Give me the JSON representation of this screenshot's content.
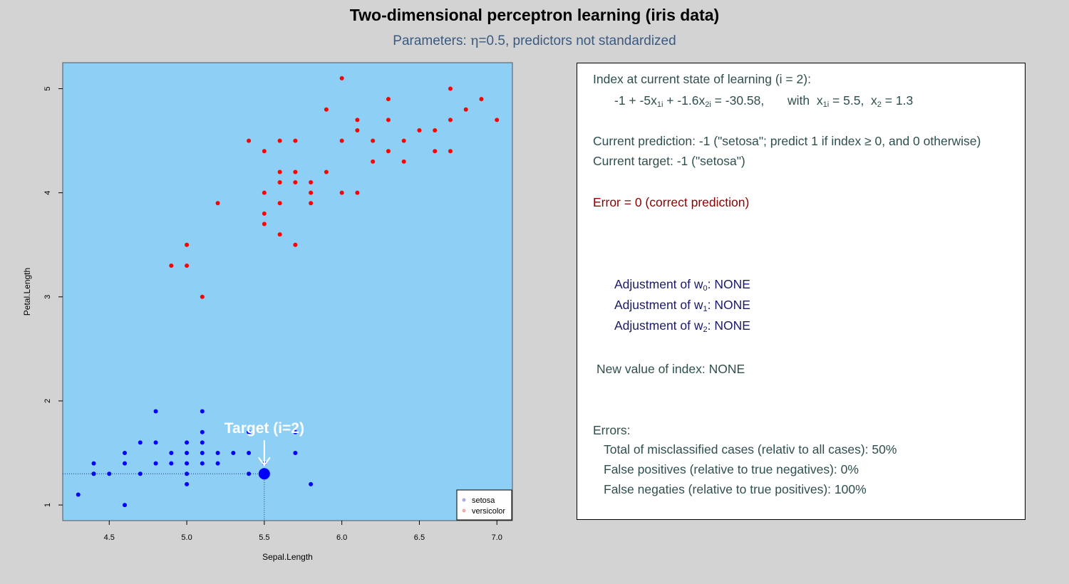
{
  "title": "Two-dimensional perceptron learning (iris data)",
  "subtitle": {
    "prefix": "Parameters: ",
    "eta_symbol": "η",
    "suffix": "=0.5, predictors not standardized"
  },
  "chart_data": {
    "type": "scatter",
    "xlabel": "Sepal.Length",
    "ylabel": "Petal.Length",
    "xlim": [
      4.2,
      7.1
    ],
    "ylim": [
      0.85,
      5.25
    ],
    "xticks": [
      "4.5",
      "5.0",
      "5.5",
      "6.0",
      "6.5",
      "7.0"
    ],
    "yticks": [
      "1",
      "2",
      "3",
      "4",
      "5"
    ],
    "background": "#8ecff5",
    "grid": false,
    "legend_position": "bottom-right",
    "series": [
      {
        "name": "setosa",
        "color": "#0000ff",
        "legend_color": "#aaaaee",
        "points": [
          [
            4.3,
            1.1
          ],
          [
            4.4,
            1.4
          ],
          [
            4.4,
            1.3
          ],
          [
            4.4,
            1.3
          ],
          [
            4.5,
            1.3
          ],
          [
            4.6,
            1.0
          ],
          [
            4.6,
            1.4
          ],
          [
            4.6,
            1.5
          ],
          [
            4.7,
            1.3
          ],
          [
            4.7,
            1.6
          ],
          [
            4.8,
            1.9
          ],
          [
            4.8,
            1.6
          ],
          [
            4.8,
            1.4
          ],
          [
            4.9,
            1.4
          ],
          [
            4.9,
            1.5
          ],
          [
            5.0,
            1.2
          ],
          [
            5.0,
            1.3
          ],
          [
            5.0,
            1.4
          ],
          [
            5.0,
            1.5
          ],
          [
            5.0,
            1.6
          ],
          [
            5.1,
            1.4
          ],
          [
            5.1,
            1.5
          ],
          [
            5.1,
            1.6
          ],
          [
            5.1,
            1.7
          ],
          [
            5.1,
            1.9
          ],
          [
            5.2,
            1.4
          ],
          [
            5.2,
            1.5
          ],
          [
            5.3,
            1.5
          ],
          [
            5.4,
            1.3
          ],
          [
            5.4,
            1.5
          ],
          [
            5.4,
            1.7
          ],
          [
            5.5,
            1.4
          ],
          [
            5.7,
            1.5
          ],
          [
            5.7,
            1.7
          ],
          [
            5.8,
            1.2
          ]
        ]
      },
      {
        "name": "versicolor",
        "color": "#ff0000",
        "legend_color": "#f0aaaa",
        "points": [
          [
            4.9,
            3.3
          ],
          [
            5.0,
            3.3
          ],
          [
            5.0,
            3.5
          ],
          [
            5.1,
            3.0
          ],
          [
            5.2,
            3.9
          ],
          [
            5.4,
            4.5
          ],
          [
            5.5,
            4.4
          ],
          [
            5.5,
            4.0
          ],
          [
            5.5,
            3.8
          ],
          [
            5.5,
            3.7
          ],
          [
            5.6,
            4.5
          ],
          [
            5.6,
            4.2
          ],
          [
            5.6,
            4.1
          ],
          [
            5.6,
            3.9
          ],
          [
            5.6,
            3.6
          ],
          [
            5.7,
            4.5
          ],
          [
            5.7,
            4.2
          ],
          [
            5.7,
            4.1
          ],
          [
            5.7,
            3.5
          ],
          [
            5.8,
            4.1
          ],
          [
            5.8,
            4.0
          ],
          [
            5.8,
            3.9
          ],
          [
            5.9,
            4.8
          ],
          [
            5.9,
            4.2
          ],
          [
            6.0,
            5.1
          ],
          [
            6.0,
            4.5
          ],
          [
            6.0,
            4.0
          ],
          [
            6.1,
            4.7
          ],
          [
            6.1,
            4.6
          ],
          [
            6.1,
            4.0
          ],
          [
            6.2,
            4.5
          ],
          [
            6.2,
            4.3
          ],
          [
            6.3,
            4.9
          ],
          [
            6.3,
            4.7
          ],
          [
            6.3,
            4.4
          ],
          [
            6.4,
            4.5
          ],
          [
            6.4,
            4.3
          ],
          [
            6.5,
            4.6
          ],
          [
            6.6,
            4.6
          ],
          [
            6.6,
            4.4
          ],
          [
            6.7,
            5.0
          ],
          [
            6.7,
            4.7
          ],
          [
            6.7,
            4.4
          ],
          [
            6.8,
            4.8
          ],
          [
            6.9,
            4.9
          ],
          [
            7.0,
            4.7
          ]
        ]
      }
    ],
    "target": {
      "label": "Target (i=2)",
      "x": 5.5,
      "y": 1.3,
      "color": "#0000ff"
    }
  },
  "panel": {
    "index_line": "Index at current state of learning (i = 2):",
    "equation": {
      "p1": "-1 + -5x",
      "s1": "1i",
      "p2": " + -1.6x",
      "s2": "2i",
      "p3": " = -30.58,",
      "with": "with",
      "x1": "x",
      "x1sub": "1i",
      "x1val": " = 5.5,",
      "x2": "x",
      "x2sub": "2",
      "x2val": " = 1.3"
    },
    "prediction": "Current prediction: -1 (\"setosa\"; predict 1 if index ≥ 0, and 0 otherwise)",
    "target": "Current target: -1 (\"setosa\")",
    "error": "Error = 0 (correct prediction)",
    "adjustments": [
      {
        "prefix": "Adjustment of w",
        "sub": "0",
        "suffix": ": NONE"
      },
      {
        "prefix": "Adjustment of w",
        "sub": "1",
        "suffix": ": NONE"
      },
      {
        "prefix": "Adjustment of w",
        "sub": "2",
        "suffix": ": NONE"
      }
    ],
    "new_index": "New value of index: NONE",
    "errors_header": "Errors:",
    "errors": [
      "Total of misclassified cases (relativ to all cases): 50%",
      "False positives (relative to true negatives): 0%",
      "False negaties (relative to true positives): 100%"
    ]
  }
}
